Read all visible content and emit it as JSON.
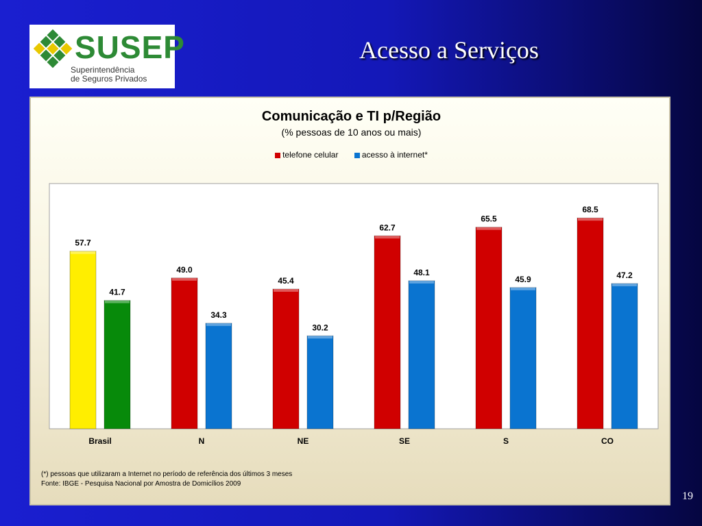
{
  "logo": {
    "name": "SUSEP",
    "subtitle_line1": "Superintendência",
    "subtitle_line2": "de Seguros Privados"
  },
  "slide": {
    "title": "Acesso a Serviços",
    "page_number": "19"
  },
  "colors": {
    "celular": "#d00000",
    "internet": "#0a74d0",
    "brasil_celular": "#ffee00",
    "brasil_internet": "#078a0a"
  },
  "chart_data": {
    "type": "bar",
    "title": "Comunicação e TI p/Região",
    "subtitle": "(% pessoas de 10 anos ou mais)",
    "categories": [
      "Brasil",
      "N",
      "NE",
      "SE",
      "S",
      "CO"
    ],
    "series": [
      {
        "name": "telefone celular",
        "values": [
          57.7,
          49.0,
          45.4,
          62.7,
          65.5,
          68.5
        ]
      },
      {
        "name": "acesso à internet*",
        "values": [
          41.7,
          34.3,
          30.2,
          48.1,
          45.9,
          47.2
        ]
      }
    ],
    "ylim": [
      0,
      75
    ],
    "legend_position": "top",
    "grid": false
  },
  "footnote": {
    "line1": "(*) pessoas que utilizaram a Internet  no período de referência dos últimos 3 meses",
    "line2": "Fonte: IBGE - Pesquisa Nacional por Amostra de Domicílios 2009"
  }
}
